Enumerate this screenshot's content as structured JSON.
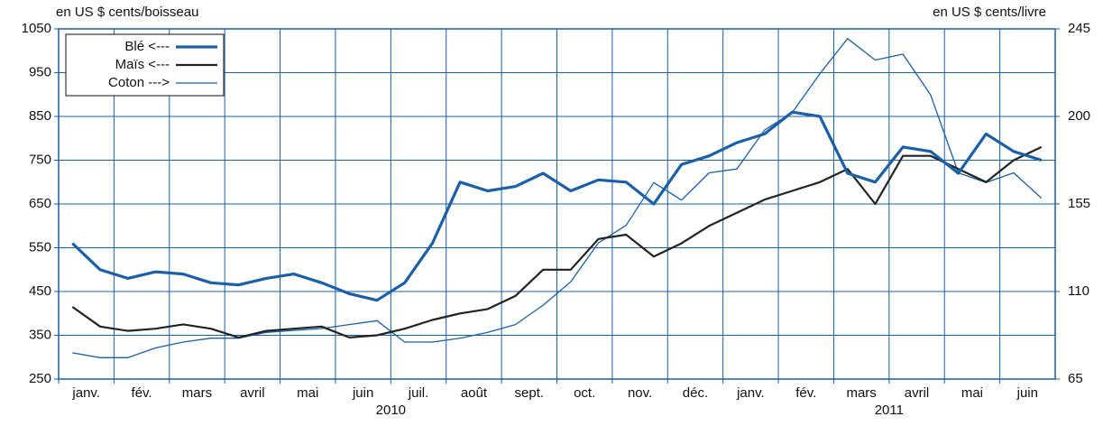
{
  "chart_data": {
    "type": "line",
    "y_label": "en US $ cents/boisseau",
    "y2_label": "en US $ cents/livre",
    "categories": [
      "janv.",
      null,
      "fév.",
      null,
      "mars",
      null,
      "avril",
      null,
      "mai",
      null,
      "juin",
      null,
      "juil.",
      null,
      "août",
      null,
      "sept.",
      null,
      "oct.",
      null,
      "nov.",
      null,
      "déc.",
      null,
      "janv.",
      null,
      "fév.",
      null,
      "mars",
      null,
      "avril",
      null,
      "mai",
      null,
      "juin",
      null
    ],
    "year_labels": [
      "2010",
      "2011"
    ],
    "series": [
      {
        "name": "Blé <---",
        "color": "#1a5fa8",
        "width": 3.2,
        "axis": "y",
        "values": [
          560,
          500,
          480,
          495,
          490,
          470,
          465,
          480,
          490,
          470,
          445,
          430,
          470,
          560,
          700,
          680,
          690,
          720,
          680,
          705,
          700,
          650,
          740,
          760,
          790,
          810,
          860,
          850,
          720,
          700,
          780,
          770,
          720,
          810,
          770,
          750
        ]
      },
      {
        "name": "Maïs <---",
        "color": "#222222",
        "width": 2.2,
        "axis": "y",
        "values": [
          415,
          370,
          360,
          365,
          375,
          365,
          345,
          360,
          365,
          370,
          345,
          350,
          365,
          385,
          400,
          410,
          440,
          500,
          500,
          570,
          580,
          530,
          560,
          600,
          630,
          660,
          680,
          700,
          730,
          650,
          760,
          760,
          730,
          700,
          750,
          780
        ]
      },
      {
        "name": "Coton --->",
        "color": "#1a5fa8",
        "width": 1.3,
        "axis": "y2",
        "values": [
          78.5,
          76,
          76,
          81,
          84,
          86,
          86,
          89,
          90,
          91,
          93,
          95,
          84,
          84,
          86,
          89,
          93,
          103,
          115,
          135,
          144,
          166,
          157,
          171,
          173,
          193,
          202,
          222,
          240,
          229,
          232,
          211,
          171,
          166,
          171,
          158
        ]
      }
    ],
    "ylim": [
      250,
      1050
    ],
    "yticks": [
      250,
      350,
      450,
      550,
      650,
      750,
      850,
      950,
      1050
    ],
    "y2lim": [
      65,
      245
    ],
    "y2ticks": [
      65,
      110,
      155,
      200,
      245
    ],
    "grid": true,
    "grid_color": "#1a5fa8",
    "legend": "upper left"
  }
}
